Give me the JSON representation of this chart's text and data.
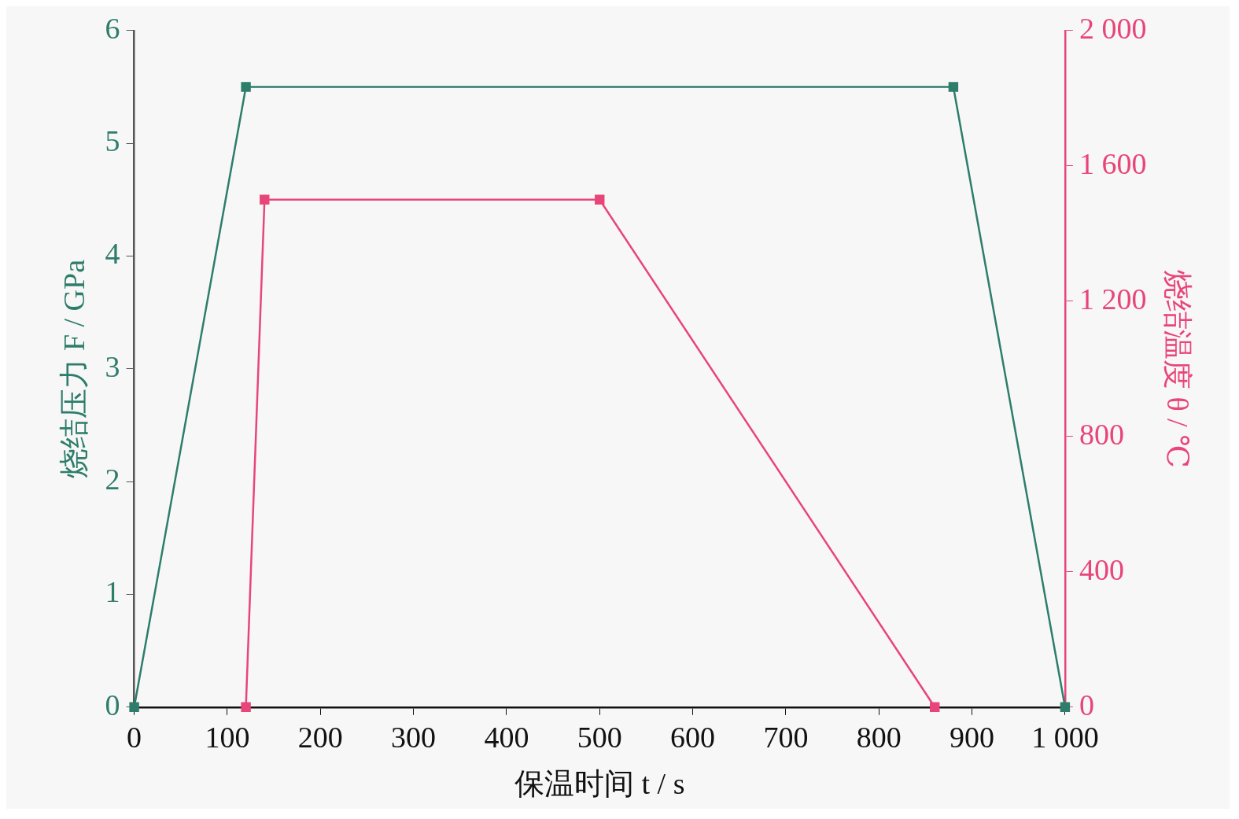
{
  "chart_data": {
    "type": "line",
    "xlabel": "保温时间 t / s",
    "ylabel": "烧结压力 F / GPa",
    "y2label": "烧结温度 θ / ℃",
    "series": [
      {
        "color": "#2e7d6b",
        "x": [
          0,
          120,
          880,
          1000
        ],
        "values": [
          0,
          5.5,
          5.5,
          0
        ]
      },
      {
        "color": "#e8457a",
        "axis": "y2",
        "x": [
          120,
          140,
          500,
          860
        ],
        "values": [
          0,
          1500,
          1500,
          0
        ]
      }
    ],
    "xlim": [
      0,
      1000
    ],
    "xticks": [
      0,
      100,
      200,
      300,
      400,
      500,
      600,
      700,
      800,
      900,
      {
        "value": 1000,
        "label": "1 000"
      }
    ],
    "ylim": [
      0,
      6
    ],
    "yticks": [
      0,
      1,
      2,
      3,
      4,
      5,
      6
    ],
    "y2lim": [
      0,
      2000
    ],
    "y2ticks": [
      0,
      400,
      800,
      {
        "value": 1200,
        "label": "1 200"
      },
      {
        "value": 1600,
        "label": "1 600"
      },
      {
        "value": 2000,
        "label": "2 000"
      }
    ],
    "grid": false,
    "legend": false,
    "marker": "square",
    "line_style": "solid"
  }
}
